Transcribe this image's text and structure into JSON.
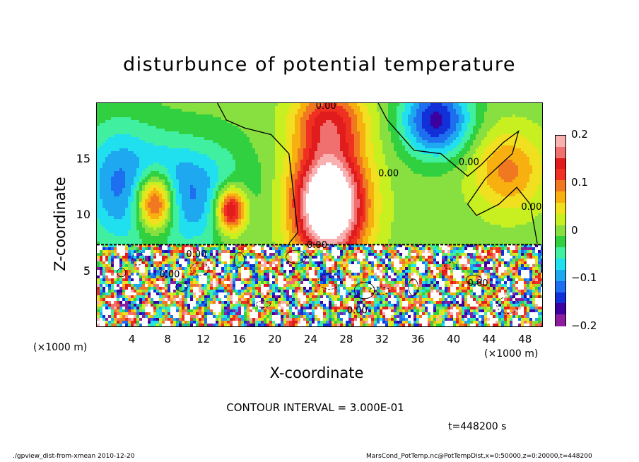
{
  "chart_data": {
    "type": "heatmap",
    "title": "disturbunce of potential temperature",
    "xlabel": "X-coordinate",
    "ylabel": "Z-coordinate",
    "x_unit": "(×1000 m)",
    "xlim": [
      0,
      50
    ],
    "ylim": [
      0,
      20
    ],
    "xticks": [
      4,
      8,
      12,
      16,
      20,
      24,
      28,
      32,
      36,
      40,
      44,
      48
    ],
    "yticks": [
      5,
      10,
      15
    ],
    "colorbar": {
      "range": [
        -0.2,
        0.2
      ],
      "tick_labels": [
        "0.2",
        "0.1",
        "0",
        "−0.1",
        "−0.2"
      ],
      "tick_values": [
        0.2,
        0.1,
        0,
        -0.1,
        -0.2
      ],
      "colors": [
        "#8c1e9e",
        "#3c00a0",
        "#1230d8",
        "#1e6ef0",
        "#1ea8f0",
        "#20e0f0",
        "#40f0a0",
        "#30d040",
        "#88e040",
        "#c8f020",
        "#f0e020",
        "#f8b010",
        "#f07820",
        "#f03020",
        "#e01c1c",
        "#f07070",
        "#f8b0b0"
      ]
    },
    "blobs": [
      {
        "x": 6.5,
        "z": 11.2,
        "v": 0.22,
        "sx": 2.2,
        "sz": 2.6
      },
      {
        "x": 15.0,
        "z": 10.5,
        "v": 0.2,
        "sx": 1.7,
        "sz": 2.0
      },
      {
        "x": 1.0,
        "z": 14.0,
        "v": -0.01,
        "sx": 4.0,
        "sz": 5.0
      },
      {
        "x": 10.5,
        "z": 16.5,
        "v": 0.005,
        "sx": 3.0,
        "sz": 3.5
      },
      {
        "x": 26.0,
        "z": 11.0,
        "v": 0.3,
        "sx": 4.0,
        "sz": 5.0
      },
      {
        "x": 26.0,
        "z": 18.5,
        "v": 0.12,
        "sx": 4.0,
        "sz": 3.0
      },
      {
        "x": 38.0,
        "z": 18.5,
        "v": -0.16,
        "sx": 3.8,
        "sz": 3.2
      },
      {
        "x": 46.0,
        "z": 14.0,
        "v": 0.09,
        "sx": 4.0,
        "sz": 3.5
      },
      {
        "x": 46.5,
        "z": 9.0,
        "v": 0.0,
        "sx": 3.0,
        "sz": 2.0
      }
    ],
    "contour_labels": [
      "0.00"
    ],
    "annotations": [
      "CONTOUR INTERVAL = 3.000E-01",
      "t=448200 s"
    ]
  },
  "footer": {
    "left": "./gpview_dist-from-xmean  2010-12-20",
    "right": "MarsCond_PotTemp.nc@PotTempDist,x=0:50000,z=0:20000,t=448200"
  }
}
